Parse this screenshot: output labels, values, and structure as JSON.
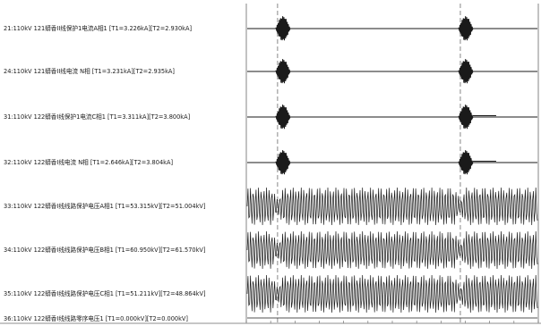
{
  "chart_data": {
    "type": "line",
    "title": "",
    "xlabel": "",
    "ylabel": "",
    "grid": false,
    "legend": "none",
    "colors": {
      "trace": "#1a1a1a",
      "cursor": "#7a7a7a",
      "frame": "#666666"
    },
    "x_range": [
      0,
      1
    ],
    "cursors": [
      {
        "id": "T1",
        "x": 0.107
      },
      {
        "id": "T2",
        "x": 0.733
      }
    ],
    "channels": [
      {
        "label": "21:110kV 121蟒香II线保护1电流A相1 [T1=3.226kA][T2=2.930kA]",
        "kind": "current",
        "amplitude": 1.0,
        "residual": 0
      },
      {
        "label": "24:110kV 121蟒香II线电流 N相 [T1=3.231kA][T2=2.935kA]",
        "kind": "current",
        "amplitude": 1.0,
        "residual": 0
      },
      {
        "label": "31:110kV 122蟒香I线保护1电流C相1 [T1=3.311kA][T2=3.800kA]",
        "kind": "current",
        "amplitude": 1.0,
        "residual": 0.05
      },
      {
        "label": "32:110kV 122蟒香I线电流 N相 [T1=2.646kA][T2=3.804kA]",
        "kind": "current",
        "amplitude": 1.0,
        "residual": 0.05
      },
      {
        "label": "33:110kV 122蟒香I线线路保护电压A相1 [T1=53.315kV][T2=51.004kV]",
        "kind": "voltage",
        "amplitude": 1.0
      },
      {
        "label": "34:110kV 122蟒香I线线路保护电压B相1 [T1=60.950kV][T2=61.570kV]",
        "kind": "voltage",
        "amplitude": 1.0
      },
      {
        "label": "35:110kV 122蟒香I线线路保护电压C相1 [T1=51.211kV][T2=48.864kV]",
        "kind": "voltage",
        "amplitude": 1.0
      },
      {
        "label": "36:110kV 122蟒香I线线路零序电压1 [T1=0.000kV][T2=0.000kV]",
        "kind": "zero",
        "amplitude": 0
      }
    ]
  }
}
